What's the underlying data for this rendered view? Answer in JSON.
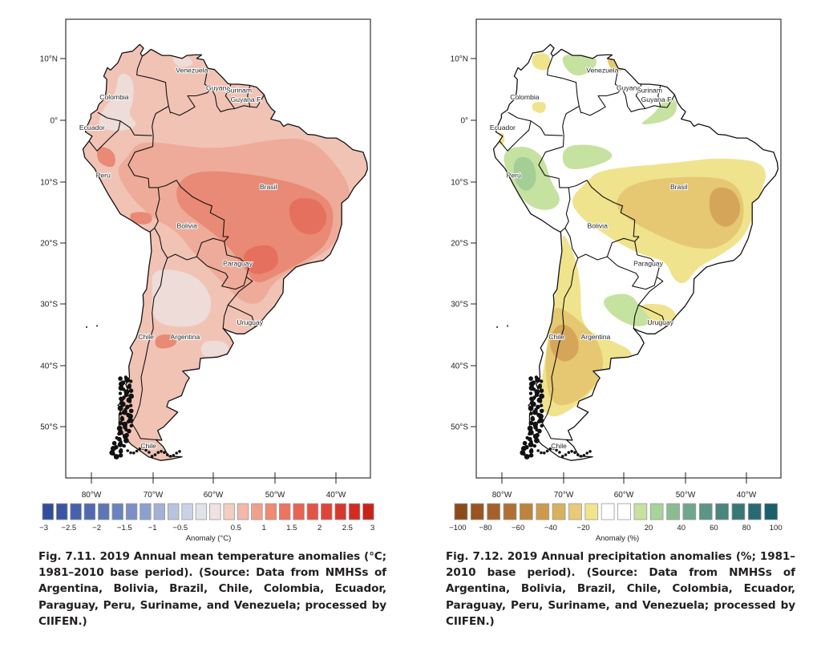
{
  "figures": [
    {
      "id": "fig-7-11",
      "caption": "Fig. 7.11. 2019 Annual mean temperature anomalies (°C; 1981–2010 base period). (Source: Data from NMHSs of Argentina, Bolivia, Brazil, Chile, Colombia, Ecuador, Paraguay, Peru, Suriname, and Venezuela; processed by CIIFEN.)",
      "lat_ticks": [
        "10°N",
        "0°",
        "10°S",
        "20°S",
        "30°S",
        "40°S",
        "50°S"
      ],
      "lon_ticks": [
        "80°W",
        "70°W",
        "60°W",
        "50°W",
        "40°W"
      ],
      "country_labels": [
        "Venezuela",
        "Colombia",
        "Guyana",
        "Surinam",
        "Guyana F.",
        "Ecuador",
        "Perú",
        "Brasil",
        "Bolivia",
        "Paraguay",
        "Uruguay",
        "Chile",
        "Argentina",
        "Chile"
      ],
      "legend": {
        "title": "Anomaly (°C)",
        "range": [
          -3,
          3
        ],
        "tick_labels": [
          "−3",
          "−2.5",
          "−2",
          "−1.5",
          "−1",
          "−0.5",
          "0.5",
          "1",
          "1.5",
          "2",
          "2.5",
          "3"
        ],
        "colors": [
          "#2f4d9c",
          "#3a55a4",
          "#4760ab",
          "#5169b0",
          "#5d74b5",
          "#6a82bf",
          "#7b90c8",
          "#8d9fcf",
          "#a3b1d6",
          "#b9c3de",
          "#ccd2e5",
          "#e1e3ea",
          "#eee3e2",
          "#f1cdc2",
          "#f3b8a6",
          "#f2a08b",
          "#ef8a74",
          "#ec7461",
          "#e86352",
          "#e45444",
          "#df4537",
          "#d9372b",
          "#d22c22",
          "#ca2219"
        ]
      },
      "region_colors": {
        "weak": "#eddcd8",
        "light": "#f1c3b5",
        "moderate": "#eeab99",
        "strong": "#e98a76",
        "strongest": "#e4705d"
      }
    },
    {
      "id": "fig-7-12",
      "caption": "Fig. 7.12. 2019 Annual precipitation anomalies (%; 1981–2010 base period). (Source: Data from NMHSs of Argentina, Bolivia, Brazil, Chile, Colombia, Ecuador, Paraguay, Peru, Suriname, and Venezuela; processed by CIIFEN.)",
      "lat_ticks": [
        "10°N",
        "0°",
        "10°S",
        "20°S",
        "30°S",
        "40°S",
        "50°S"
      ],
      "lon_ticks": [
        "80°W",
        "70°W",
        "60°W",
        "50°W",
        "40°W"
      ],
      "country_labels": [
        "Venezuela",
        "Colombia",
        "Guyana",
        "Surinam",
        "Guyana F.",
        "Ecuador",
        "Perú",
        "Brasil",
        "Bolivia",
        "Paraguay",
        "Uruguay",
        "Chile",
        "Argentina",
        "Chile"
      ],
      "legend": {
        "title": "Anomaly (%)",
        "range": [
          -100,
          100
        ],
        "tick_labels": [
          "−100",
          "−80",
          "−60",
          "−40",
          "−20",
          "20",
          "40",
          "60",
          "80",
          "100"
        ],
        "colors": [
          "#8c4a1c",
          "#985421",
          "#a56129",
          "#b06f33",
          "#bd843d",
          "#cd9a4c",
          "#d9b15e",
          "#e7cb78",
          "#f1e48c",
          "#ffffff",
          "#ffffff",
          "#c7e2a0",
          "#a8d39a",
          "#8bbc91",
          "#6fa78c",
          "#5a9585",
          "#4a857e",
          "#387776",
          "#286a71",
          "#1a5f6b"
        ]
      },
      "region_colors": {
        "dry_light": "#f0e38d",
        "dry_moderate": "#e5c871",
        "dry_strong": "#d5a55a",
        "wet_light": "#c6e2a0",
        "wet_moderate": "#a3cf97",
        "neutral": "#ffffff"
      }
    }
  ]
}
